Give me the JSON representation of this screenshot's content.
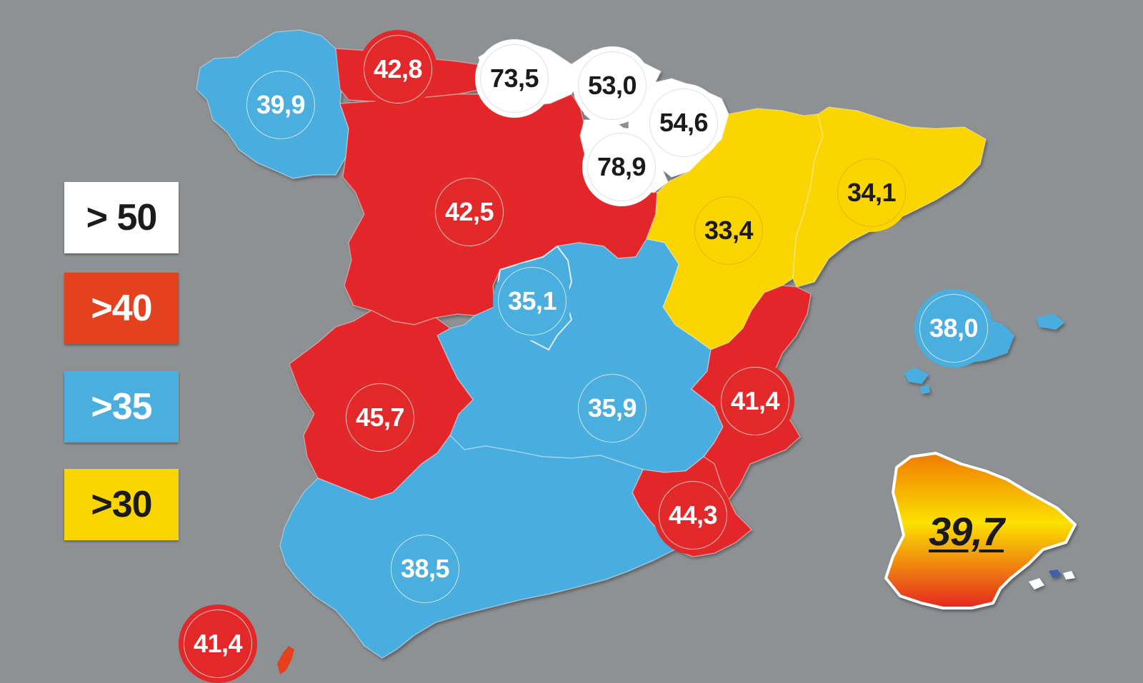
{
  "legend": [
    {
      "label": "> 50",
      "bg": "#ffffff",
      "fg": "#1b1b1b"
    },
    {
      "label": ">40",
      "bg": "#e4411f",
      "fg": "#ffffff"
    },
    {
      "label": ">35",
      "bg": "#4aaedf",
      "fg": "#ffffff"
    },
    {
      "label": ">30",
      "bg": "#fad500",
      "fg": "#1b1b1b"
    }
  ],
  "colors": {
    "red": "#e3282a",
    "blue": "#4aaedf",
    "white": "#ffffff",
    "yellow": "#fad500",
    "background": "#8e9194"
  },
  "regions": {
    "galicia": "39,9",
    "asturias": "42,8",
    "cantabria": "73,5",
    "pais_vasco": "53,0",
    "navarra": "54,6",
    "la_rioja": "78,9",
    "castilla_leon": "42,5",
    "aragon": "33,4",
    "cataluna": "34,1",
    "madrid": "35,1",
    "baleares": "38,0",
    "extremadura": "45,7",
    "castilla_la_mancha": "35,9",
    "valencia": "41,4",
    "murcia": "44,3",
    "andalucia": "38,5",
    "canarias": "41,4"
  },
  "national_value": "39,7"
}
